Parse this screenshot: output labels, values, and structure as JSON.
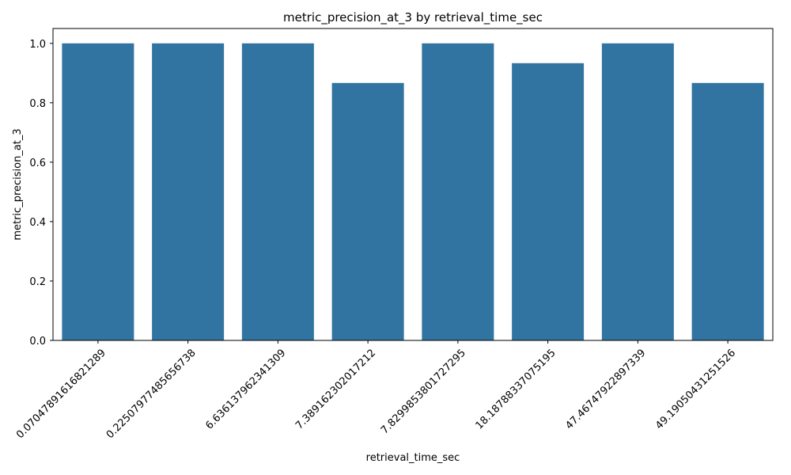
{
  "chart_data": {
    "type": "bar",
    "title": "metric_precision_at_3 by retrieval_time_sec",
    "xlabel": "retrieval_time_sec",
    "ylabel": "metric_precision_at_3",
    "categories": [
      "0.0704789161682128​9",
      "0.2250797748565673​8",
      "6.63613796234130​9",
      "7.38916230201721​2",
      "7.82998538017272​95",
      "18.1878833707519​5",
      "47.4674792289733​9",
      "49.1905043125152​6"
    ],
    "values": [
      1.0,
      1.0,
      1.0,
      0.8667,
      1.0,
      0.9333,
      1.0,
      0.8667
    ],
    "ylim": [
      0,
      1.05
    ],
    "yticks": [
      "0.0",
      "0.2",
      "0.4",
      "0.6",
      "0.8",
      "1.0"
    ],
    "ytick_values": [
      0,
      0.2,
      0.4,
      0.6,
      0.8,
      1.0
    ],
    "grid": false,
    "bar_color": "#3274a1"
  }
}
